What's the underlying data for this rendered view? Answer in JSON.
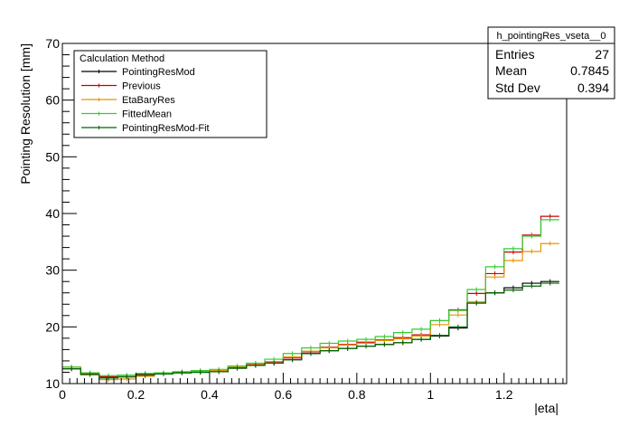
{
  "chart_data": {
    "type": "line",
    "xlabel": "|eta|",
    "ylabel": "Pointing Resolution [mm]",
    "xlim": [
      0,
      1.37
    ],
    "ylim": [
      10,
      70
    ],
    "x_ticks": [
      0,
      0.2,
      0.4,
      0.6,
      0.8,
      1,
      1.2
    ],
    "x_tick_labels": [
      "0",
      "0.2",
      "0.4",
      "0.6",
      "0.8",
      "1",
      "1.2"
    ],
    "y_ticks": [
      10,
      20,
      30,
      40,
      50,
      60,
      70
    ],
    "y_tick_labels": [
      "10",
      "20",
      "30",
      "40",
      "50",
      "60",
      "70"
    ],
    "bin_width": 0.05,
    "bin_starts": [
      0,
      0.05,
      0.1,
      0.15,
      0.2,
      0.25,
      0.3,
      0.35,
      0.4,
      0.45,
      0.5,
      0.55,
      0.6,
      0.65,
      0.7,
      0.75,
      0.8,
      0.85,
      0.9,
      0.95,
      1.0,
      1.05,
      1.1,
      1.15,
      1.2,
      1.25,
      1.3
    ],
    "legend": {
      "title": "Calculation Method",
      "placement": "top-left"
    },
    "series": [
      {
        "name": "PointingResMod",
        "color": "#000000",
        "values": [
          12.6,
          11.6,
          11.0,
          11.2,
          11.5,
          11.7,
          11.9,
          12.0,
          12.1,
          12.7,
          13.2,
          13.6,
          14.2,
          15.3,
          15.8,
          16.2,
          16.6,
          16.9,
          17.2,
          17.8,
          18.4,
          19.8,
          24.2,
          26.0,
          26.9,
          27.7,
          28.0
        ]
      },
      {
        "name": "Previous",
        "color": "#cc0000",
        "values": [
          12.9,
          11.8,
          11.2,
          11.2,
          11.7,
          11.9,
          12.0,
          12.1,
          12.3,
          12.8,
          13.3,
          13.7,
          14.5,
          15.6,
          16.4,
          16.9,
          17.3,
          17.7,
          18.1,
          18.6,
          21.1,
          23.0,
          25.9,
          29.4,
          33.2,
          36.2,
          39.5
        ]
      },
      {
        "name": "EtaBaryRes",
        "color": "#e69500",
        "values": [
          12.9,
          11.6,
          10.7,
          10.8,
          11.3,
          11.8,
          11.9,
          12.1,
          12.3,
          13.0,
          13.5,
          13.9,
          14.7,
          15.7,
          16.3,
          16.8,
          17.1,
          17.6,
          17.9,
          18.4,
          20.4,
          22.1,
          24.4,
          28.8,
          31.7,
          33.3,
          34.7
        ]
      },
      {
        "name": "FittedMean",
        "color": "#33cc33",
        "values": [
          12.9,
          11.9,
          11.4,
          11.5,
          11.8,
          11.9,
          12.1,
          12.3,
          12.5,
          13.1,
          13.6,
          14.3,
          15.3,
          16.3,
          17.1,
          17.5,
          17.8,
          18.3,
          19.0,
          19.6,
          21.1,
          22.9,
          26.6,
          30.6,
          33.8,
          36.0,
          38.9
        ]
      },
      {
        "name": "PointingResMod-Fit",
        "color": "#006600",
        "values": [
          12.6,
          11.6,
          11.0,
          11.2,
          11.5,
          11.7,
          11.9,
          12.0,
          12.1,
          12.7,
          13.2,
          13.6,
          14.2,
          15.3,
          15.8,
          16.2,
          16.6,
          16.9,
          17.2,
          17.8,
          18.5,
          20.0,
          24.2,
          26.0,
          26.5,
          27.2,
          27.7
        ]
      }
    ],
    "stats_box": {
      "title": "h_pointingRes_vseta__0",
      "rows": [
        {
          "label": "Entries",
          "value": "27"
        },
        {
          "label": "Mean",
          "value": "0.7845"
        },
        {
          "label": "Std Dev",
          "value": "0.394"
        }
      ]
    }
  }
}
